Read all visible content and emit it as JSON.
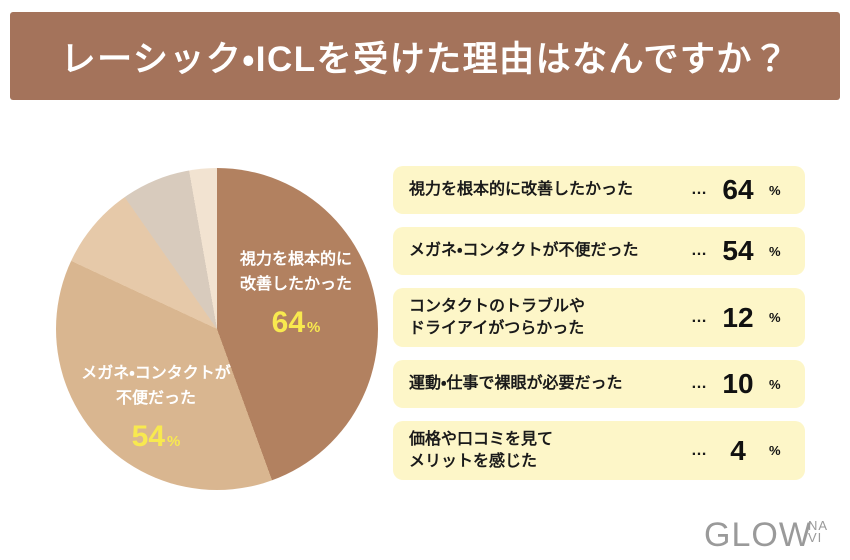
{
  "theme": {
    "header_bg": "#a4735b",
    "row_bg": "#fdf6c8",
    "accent_yellow": "#f8e94f",
    "pie_colors": [
      "#b28160",
      "#d9b690",
      "#e6c9a9",
      "#d8cbbd",
      "#f2e3d1"
    ]
  },
  "header": {
    "title": "レーシック・ICLを受けた理由はなんですか？"
  },
  "chart_data": {
    "type": "pie",
    "title": "レーシック・ICLを受けた理由はなんですか？",
    "categories": [
      "視力を根本的に改善したかった",
      "メガネ・コンタクトが不便だった",
      "コンタクトのトラブルやドライアイがつらかった",
      "運動・仕事で裸眼が必要だった",
      "価格や口コミを見てメリットを感じた"
    ],
    "values": [
      64,
      54,
      12,
      10,
      4
    ],
    "unit": "%",
    "start_angle_deg": 0,
    "direction": "clockwise",
    "legend_position": "right",
    "colors": [
      "#b28160",
      "#d9b690",
      "#e6c9a9",
      "#d8cbbd",
      "#f2e3d1"
    ]
  },
  "pie_labels": [
    {
      "text": "視力を根本的に\n改善したかった",
      "value": "64",
      "unit": "%"
    },
    {
      "text": "メガネ・コンタクトが\n不便だった",
      "value": "54",
      "unit": "%"
    }
  ],
  "legend": {
    "rows": [
      {
        "label": "視力を根本的に改善したかった",
        "ellipsis": "…",
        "value": "64",
        "unit": "%"
      },
      {
        "label": "メガネ・コンタクトが不便だった",
        "ellipsis": "…",
        "value": "54",
        "unit": "%"
      },
      {
        "label": "コンタクトのトラブルや\nドライアイがつらかった",
        "ellipsis": "…",
        "value": "12",
        "unit": "%"
      },
      {
        "label": "運動・仕事で裸眼が必要だった",
        "ellipsis": "…",
        "value": "10",
        "unit": "%"
      },
      {
        "label": "価格や口コミを見て\nメリットを感じた",
        "ellipsis": "…",
        "value": "4",
        "unit": "%"
      }
    ]
  },
  "logo": {
    "main": "GLOW",
    "sub_top": "NA",
    "sub_bottom": "VI"
  }
}
